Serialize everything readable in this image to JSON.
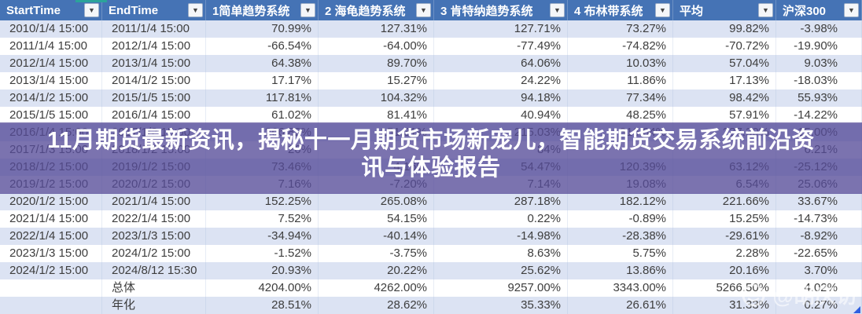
{
  "header": {
    "columns": [
      {
        "label": "StartTime"
      },
      {
        "label": "EndTime"
      },
      {
        "label": "1简单趋势系统"
      },
      {
        "label": "2 海龟趋势系统"
      },
      {
        "label": "3 肯特纳趋势系统"
      },
      {
        "label": "4 布林带系统"
      },
      {
        "label": "平均"
      },
      {
        "label": "沪深300"
      }
    ],
    "filter_icon": "▼"
  },
  "table": {
    "rows": [
      [
        "2010/1/4 15:00",
        "2011/1/4 15:00",
        "70.99%",
        "127.31%",
        "127.71%",
        "73.27%",
        "99.82%",
        "-3.98%"
      ],
      [
        "2011/1/4 15:00",
        "2012/1/4 15:00",
        "-66.54%",
        "-64.00%",
        "-77.49%",
        "-74.82%",
        "-70.72%",
        "-19.90%"
      ],
      [
        "2012/1/4 15:00",
        "2013/1/4 15:00",
        "64.38%",
        "89.70%",
        "64.06%",
        "10.03%",
        "57.04%",
        "9.03%"
      ],
      [
        "2013/1/4 15:00",
        "2014/1/2 15:00",
        "17.17%",
        "15.27%",
        "24.22%",
        "11.86%",
        "17.13%",
        "-18.03%"
      ],
      [
        "2014/1/2 15:00",
        "2015/1/5 15:00",
        "117.81%",
        "104.32%",
        "94.18%",
        "77.34%",
        "98.42%",
        "55.93%"
      ],
      [
        "2015/1/5 15:00",
        "2016/1/4 15:00",
        "61.02%",
        "81.41%",
        "40.94%",
        "48.25%",
        "57.91%",
        "-14.22%"
      ],
      [
        "2016/1/4 15:00",
        "2017/1/2 15:00",
        "266.82%",
        "151.31%",
        "215.03%",
        "316.04%",
        "237.30%",
        "15.00%"
      ],
      [
        "2017/1/3 15:00",
        "2018/1/2 15:00",
        "26%",
        "",
        "84%",
        "",
        "",
        "6.21%"
      ],
      [
        "2018/1/2 15:00",
        "2019/1/2 15:00",
        "73.46%",
        "4.16%",
        "54.47%",
        "120.39%",
        "63.12%",
        "-25.12%"
      ],
      [
        "2019/1/2 15:00",
        "2020/1/2 15:00",
        "7.16%",
        "-7.20%",
        "7.14%",
        "19.08%",
        "6.54%",
        "25.06%"
      ],
      [
        "2020/1/2 15:00",
        "2021/1/4 15:00",
        "152.25%",
        "265.08%",
        "287.18%",
        "182.12%",
        "221.66%",
        "33.67%"
      ],
      [
        "2021/1/4 15:00",
        "2022/1/4 15:00",
        "7.52%",
        "54.15%",
        "0.22%",
        "-0.89%",
        "15.25%",
        "-14.73%"
      ],
      [
        "2022/1/4 15:00",
        "2023/1/3 15:00",
        "-34.94%",
        "-40.14%",
        "-14.98%",
        "-28.38%",
        "-29.61%",
        "-8.92%"
      ],
      [
        "2023/1/3 15:00",
        "2024/1/2 15:00",
        "-1.52%",
        "-3.75%",
        "8.63%",
        "5.75%",
        "2.28%",
        "-22.65%"
      ],
      [
        "2024/1/2 15:00",
        "2024/8/12 15:30",
        "20.93%",
        "20.22%",
        "25.62%",
        "13.86%",
        "20.16%",
        "3.70%"
      ],
      [
        "",
        "总体",
        "4204.00%",
        "4262.00%",
        "9257.00%",
        "3343.00%",
        "5266.50%",
        "4.02%"
      ],
      [
        "",
        "年化",
        "28.51%",
        "28.62%",
        "35.33%",
        "26.61%",
        "31.33%",
        "0.27%"
      ]
    ]
  },
  "banner": {
    "line1": "11月期货最新资讯，揭秘十一月期货市场新宠儿，智能期货交易系统前沿资",
    "line2": "讯与体验报告"
  },
  "watermark": {
    "text": "@胡庆访"
  },
  "colors": {
    "header_bg": "#4573b5",
    "row_band": "#dce3f3",
    "banner_purple": "#564c98",
    "banner_text": "#ffffff",
    "corner_handle_blue": "#2f5fe0",
    "teal_marker": "#2ba39a"
  }
}
